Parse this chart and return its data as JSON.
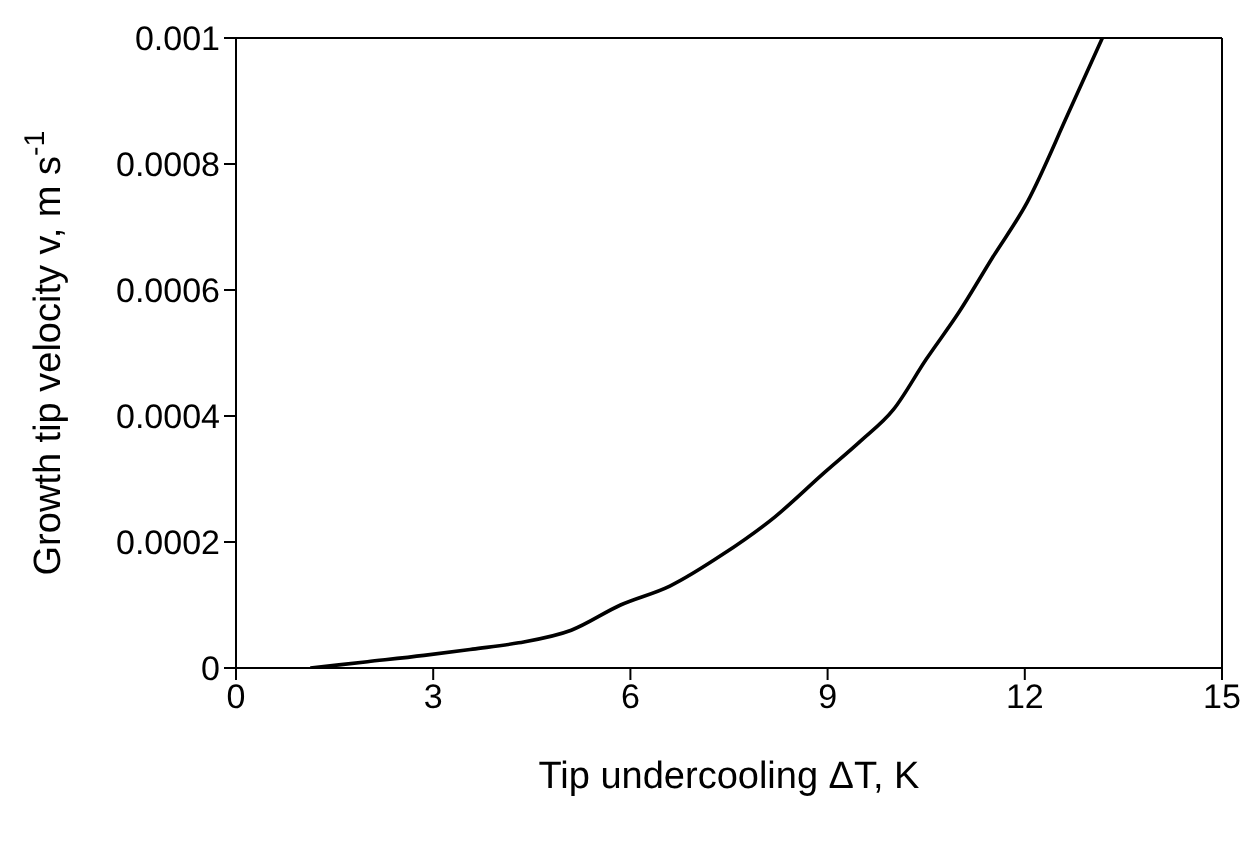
{
  "chart_data": {
    "type": "line",
    "xlabel": "Tip undercooling ΔT, K",
    "ylabel": "Growth tip velocity v, m s$^{-1}$",
    "x": [
      1.13,
      2.0,
      2.86,
      3.6,
      4.3,
      5.1,
      5.85,
      6.6,
      7.4,
      8.2,
      8.95,
      9.5,
      10.0,
      10.5,
      11.0,
      11.5,
      12.04,
      12.66,
      13.18
    ],
    "series": [
      {
        "color": "#000000",
        "values": [
          0,
          1e-05,
          2e-05,
          3e-05,
          4e-05,
          6e-05,
          0.0001,
          0.00013,
          0.00018,
          0.00024,
          0.00031,
          0.00036,
          0.00041,
          0.00049,
          0.000565,
          0.00065,
          0.00074,
          0.00088,
          0.001
        ]
      }
    ],
    "xlim": [
      0,
      15
    ],
    "xticks": [
      0,
      3,
      6,
      9,
      12,
      15
    ],
    "ylim": [
      0,
      0.001
    ],
    "yticks": [
      0,
      0.0002,
      0.0004,
      0.0006,
      0.0008,
      0.001
    ],
    "grid": false,
    "marker": "none",
    "line_style": "solid"
  }
}
